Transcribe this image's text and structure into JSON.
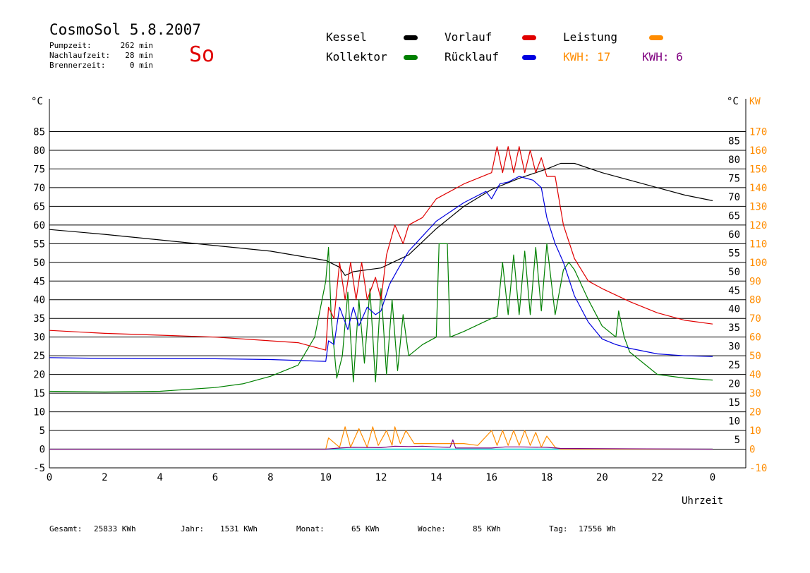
{
  "header": {
    "title": "CosmoSol 5.8.2007",
    "day": "So",
    "stats": [
      {
        "label": "Pumpzeit:",
        "value": "262 min"
      },
      {
        "label": "Nachlaufzeit:",
        "value": "28 min"
      },
      {
        "label": "Brennerzeit:",
        "value": "0 min"
      }
    ]
  },
  "legend": {
    "kessel": "Kessel",
    "kollektor": "Kollektor",
    "vorlauf": "Vorlauf",
    "ruecklauf": "Rücklauf",
    "leistung": "Leistung",
    "kwh_orange": "KWH: 17",
    "kwh_purple": "KWH: 6"
  },
  "footer": {
    "gesamt_label": "Gesamt:",
    "gesamt_value": "25833 KWh",
    "jahr_label": "Jahr:",
    "jahr_value": "1531 KWh",
    "monat_label": "Monat:",
    "monat_value": "65 KWh",
    "woche_label": "Woche:",
    "woche_value": "85 KWh",
    "tag_label": "Tag:",
    "tag_value": "17556 Wh"
  },
  "chart_data": {
    "type": "line",
    "xlabel": "Uhrzeit",
    "ylabel_left": "°C",
    "ylabel_right_temp": "°C",
    "ylabel_right_power": "KW",
    "xlim": [
      0,
      24
    ],
    "ylim": [
      -5,
      90
    ],
    "x_ticks": [
      "0",
      "2",
      "4",
      "6",
      "8",
      "10",
      "12",
      "14",
      "16",
      "18",
      "20",
      "22",
      "0"
    ],
    "y_ticks": [
      -5,
      0,
      5,
      10,
      15,
      20,
      25,
      30,
      35,
      40,
      45,
      50,
      55,
      60,
      65,
      70,
      75,
      80,
      85
    ],
    "right_temp_ticks": [
      5,
      10,
      15,
      20,
      25,
      30,
      35,
      40,
      45,
      50,
      55,
      60,
      65,
      70,
      75,
      80,
      85
    ],
    "right_power_ticks": [
      -10,
      0,
      10,
      20,
      30,
      40,
      50,
      60,
      70,
      80,
      90,
      100,
      110,
      120,
      130,
      140,
      150,
      160,
      170
    ],
    "colors": {
      "kessel": "#000000",
      "kollektor": "#008000",
      "vorlauf": "#e00000",
      "ruecklauf": "#0000e0",
      "leistung": "#ff8c00",
      "kwh": "#800080",
      "baseline": "#00cccc",
      "power_axis": "#ff8c00"
    },
    "series": [
      {
        "name": "Kessel",
        "points": [
          [
            0,
            58.8
          ],
          [
            2,
            57.5
          ],
          [
            4,
            56
          ],
          [
            6,
            54.5
          ],
          [
            8,
            53
          ],
          [
            10,
            50.5
          ],
          [
            10.5,
            48.7
          ],
          [
            10.7,
            46.5
          ],
          [
            11,
            47.5
          ],
          [
            12,
            48.5
          ],
          [
            13,
            52
          ],
          [
            14,
            59
          ],
          [
            15,
            65
          ],
          [
            16,
            69.5
          ],
          [
            17,
            72.5
          ],
          [
            18,
            75
          ],
          [
            18.5,
            76.5
          ],
          [
            19,
            76.5
          ],
          [
            20,
            74
          ],
          [
            21,
            72
          ],
          [
            22,
            70
          ],
          [
            23,
            68
          ],
          [
            24,
            66.5
          ]
        ]
      },
      {
        "name": "Kollektor",
        "points": [
          [
            0,
            15.5
          ],
          [
            2,
            15.3
          ],
          [
            4,
            15.5
          ],
          [
            6,
            16.5
          ],
          [
            7,
            17.5
          ],
          [
            8,
            19.5
          ],
          [
            9,
            22.5
          ],
          [
            9.6,
            30
          ],
          [
            10,
            45
          ],
          [
            10.1,
            54
          ],
          [
            10.2,
            35
          ],
          [
            10.4,
            19
          ],
          [
            10.6,
            25
          ],
          [
            10.8,
            42
          ],
          [
            11,
            18
          ],
          [
            11.2,
            40
          ],
          [
            11.4,
            23
          ],
          [
            11.6,
            43
          ],
          [
            11.8,
            18
          ],
          [
            12,
            43
          ],
          [
            12.2,
            20
          ],
          [
            12.4,
            40
          ],
          [
            12.6,
            21
          ],
          [
            12.8,
            36
          ],
          [
            13,
            25
          ],
          [
            13.5,
            28
          ],
          [
            14,
            30
          ],
          [
            14.1,
            55
          ],
          [
            14.4,
            55
          ],
          [
            14.5,
            30
          ],
          [
            15,
            31.5
          ],
          [
            16,
            35
          ],
          [
            16.2,
            35.5
          ],
          [
            16.4,
            50
          ],
          [
            16.6,
            36
          ],
          [
            16.8,
            52
          ],
          [
            17,
            36
          ],
          [
            17.2,
            53
          ],
          [
            17.4,
            36
          ],
          [
            17.6,
            54
          ],
          [
            17.8,
            37
          ],
          [
            18,
            55
          ],
          [
            18.3,
            36
          ],
          [
            18.6,
            48
          ],
          [
            18.8,
            50
          ],
          [
            19,
            48
          ],
          [
            19.5,
            40
          ],
          [
            20,
            33
          ],
          [
            20.5,
            30
          ],
          [
            20.6,
            37
          ],
          [
            20.8,
            30
          ],
          [
            21,
            26
          ],
          [
            22,
            20
          ],
          [
            23,
            19
          ],
          [
            24,
            18.5
          ]
        ]
      },
      {
        "name": "Vorlauf",
        "points": [
          [
            0,
            31.8
          ],
          [
            2,
            31
          ],
          [
            4,
            30.5
          ],
          [
            6,
            30
          ],
          [
            8,
            29
          ],
          [
            9,
            28.5
          ],
          [
            10,
            26.5
          ],
          [
            10.1,
            38
          ],
          [
            10.3,
            35
          ],
          [
            10.5,
            50
          ],
          [
            10.7,
            40
          ],
          [
            10.9,
            50
          ],
          [
            11.1,
            40
          ],
          [
            11.3,
            50
          ],
          [
            11.5,
            40
          ],
          [
            11.8,
            46
          ],
          [
            12,
            40
          ],
          [
            12.2,
            52
          ],
          [
            12.5,
            60
          ],
          [
            12.8,
            55
          ],
          [
            13,
            60
          ],
          [
            13.5,
            62
          ],
          [
            14,
            67
          ],
          [
            15,
            71
          ],
          [
            16,
            74
          ],
          [
            16.2,
            81
          ],
          [
            16.4,
            74
          ],
          [
            16.6,
            81
          ],
          [
            16.8,
            74
          ],
          [
            17,
            81
          ],
          [
            17.2,
            74
          ],
          [
            17.4,
            80
          ],
          [
            17.6,
            74
          ],
          [
            17.8,
            78
          ],
          [
            18,
            73
          ],
          [
            18.3,
            73
          ],
          [
            18.6,
            60
          ],
          [
            19,
            51
          ],
          [
            19.5,
            45
          ],
          [
            20,
            43
          ],
          [
            21,
            39.5
          ],
          [
            22,
            36.5
          ],
          [
            23,
            34.5
          ],
          [
            24,
            33.5
          ]
        ]
      },
      {
        "name": "Rücklauf",
        "points": [
          [
            0,
            24.5
          ],
          [
            2,
            24.3
          ],
          [
            4,
            24.2
          ],
          [
            6,
            24.2
          ],
          [
            8,
            24
          ],
          [
            10,
            23.5
          ],
          [
            10.1,
            29
          ],
          [
            10.3,
            28
          ],
          [
            10.5,
            38
          ],
          [
            10.8,
            32
          ],
          [
            11,
            38
          ],
          [
            11.2,
            33
          ],
          [
            11.5,
            38
          ],
          [
            11.8,
            36
          ],
          [
            12,
            37
          ],
          [
            12.3,
            44
          ],
          [
            12.6,
            48
          ],
          [
            13,
            53
          ],
          [
            13.5,
            57
          ],
          [
            14,
            61
          ],
          [
            15,
            66
          ],
          [
            15.8,
            69
          ],
          [
            16,
            67
          ],
          [
            16.3,
            71
          ],
          [
            16.6,
            71.5
          ],
          [
            17,
            73
          ],
          [
            17.5,
            72
          ],
          [
            17.8,
            70
          ],
          [
            18,
            62
          ],
          [
            18.3,
            55
          ],
          [
            18.6,
            50
          ],
          [
            19,
            41
          ],
          [
            19.5,
            34
          ],
          [
            20,
            29.5
          ],
          [
            20.5,
            28
          ],
          [
            21,
            27
          ],
          [
            22,
            25.5
          ],
          [
            23,
            25
          ],
          [
            24,
            24.8
          ]
        ]
      },
      {
        "name": "Leistung",
        "points": [
          [
            0,
            0
          ],
          [
            10,
            0
          ],
          [
            10.1,
            3
          ],
          [
            10.5,
            0.5
          ],
          [
            10.7,
            6
          ],
          [
            10.9,
            0.5
          ],
          [
            11.2,
            5.5
          ],
          [
            11.5,
            0.5
          ],
          [
            11.7,
            6
          ],
          [
            11.9,
            1
          ],
          [
            12.2,
            5
          ],
          [
            12.4,
            1
          ],
          [
            12.5,
            6
          ],
          [
            12.7,
            1.5
          ],
          [
            12.9,
            5
          ],
          [
            13.2,
            1.5
          ],
          [
            14,
            1.5
          ],
          [
            15,
            1.5
          ],
          [
            15.5,
            1
          ],
          [
            16,
            5
          ],
          [
            16.2,
            1
          ],
          [
            16.4,
            5
          ],
          [
            16.6,
            1
          ],
          [
            16.8,
            5
          ],
          [
            17,
            1
          ],
          [
            17.2,
            5
          ],
          [
            17.4,
            1
          ],
          [
            17.6,
            4.5
          ],
          [
            17.8,
            0.5
          ],
          [
            18,
            3.5
          ],
          [
            18.3,
            0.5
          ],
          [
            18.5,
            0
          ],
          [
            24,
            0
          ]
        ]
      },
      {
        "name": "KWH",
        "points": [
          [
            0,
            0
          ],
          [
            10,
            0
          ],
          [
            10.5,
            0.3
          ],
          [
            11,
            0.5
          ],
          [
            12,
            0.4
          ],
          [
            12.5,
            0.8
          ],
          [
            13,
            0.7
          ],
          [
            13.5,
            0.8
          ],
          [
            14,
            0.6
          ],
          [
            14.5,
            0.5
          ],
          [
            14.6,
            2.5
          ],
          [
            14.7,
            0.3
          ],
          [
            15,
            0.3
          ],
          [
            16,
            0.3
          ],
          [
            16.5,
            0.6
          ],
          [
            17,
            0.6
          ],
          [
            18,
            0.5
          ],
          [
            18.5,
            0.2
          ],
          [
            24,
            0
          ]
        ]
      }
    ]
  }
}
